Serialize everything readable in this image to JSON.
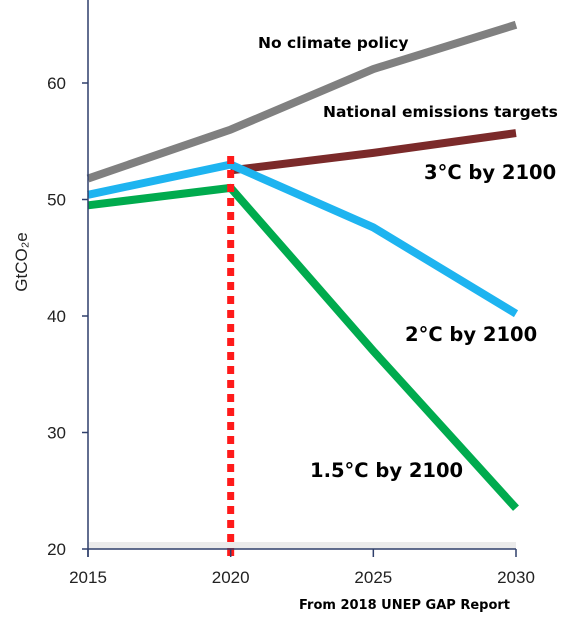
{
  "chart_data": {
    "type": "line",
    "ylabel": "GtCO₂e",
    "xlabel": "",
    "x": [
      2015,
      2020,
      2025,
      2030
    ],
    "x_ticks": [
      "2015",
      "2020",
      "2025",
      "2030"
    ],
    "y_ticks": [
      "20",
      "30",
      "40",
      "50",
      "60"
    ],
    "xlim": [
      2015,
      2030
    ],
    "ylim": [
      20,
      65
    ],
    "grid": false,
    "marker_year": 2020,
    "source": "From 2018 UNEP GAP Report",
    "series": [
      {
        "name": "No climate policy",
        "color": "#808080",
        "points": [
          [
            2015,
            51.8
          ],
          [
            2020,
            56.0
          ],
          [
            2025,
            61.2
          ],
          [
            2030,
            65.0
          ]
        ]
      },
      {
        "name": "National emissions targets",
        "color": "#7B2A2A",
        "points": [
          [
            2020,
            52.5
          ],
          [
            2025,
            54.0
          ],
          [
            2030,
            55.7
          ]
        ]
      },
      {
        "name": "3°C by 2100",
        "color": "#1EB4F0",
        "points": [
          [
            2015,
            50.4
          ],
          [
            2020,
            53.0
          ],
          [
            2025,
            47.6
          ],
          [
            2030,
            40.2
          ]
        ]
      },
      {
        "name": "2°C by 2100",
        "color": "#00AB4E",
        "points": [
          [
            2015,
            49.5
          ],
          [
            2020,
            51.0
          ],
          [
            2025,
            37.0
          ],
          [
            2030,
            23.5
          ]
        ]
      }
    ],
    "annotations": [
      {
        "text": "No climate policy"
      },
      {
        "text": "National emissions targets"
      },
      {
        "text": "3°C by 2100"
      },
      {
        "text": "2°C by 2100"
      },
      {
        "text": "1.5°C by 2100"
      }
    ]
  }
}
